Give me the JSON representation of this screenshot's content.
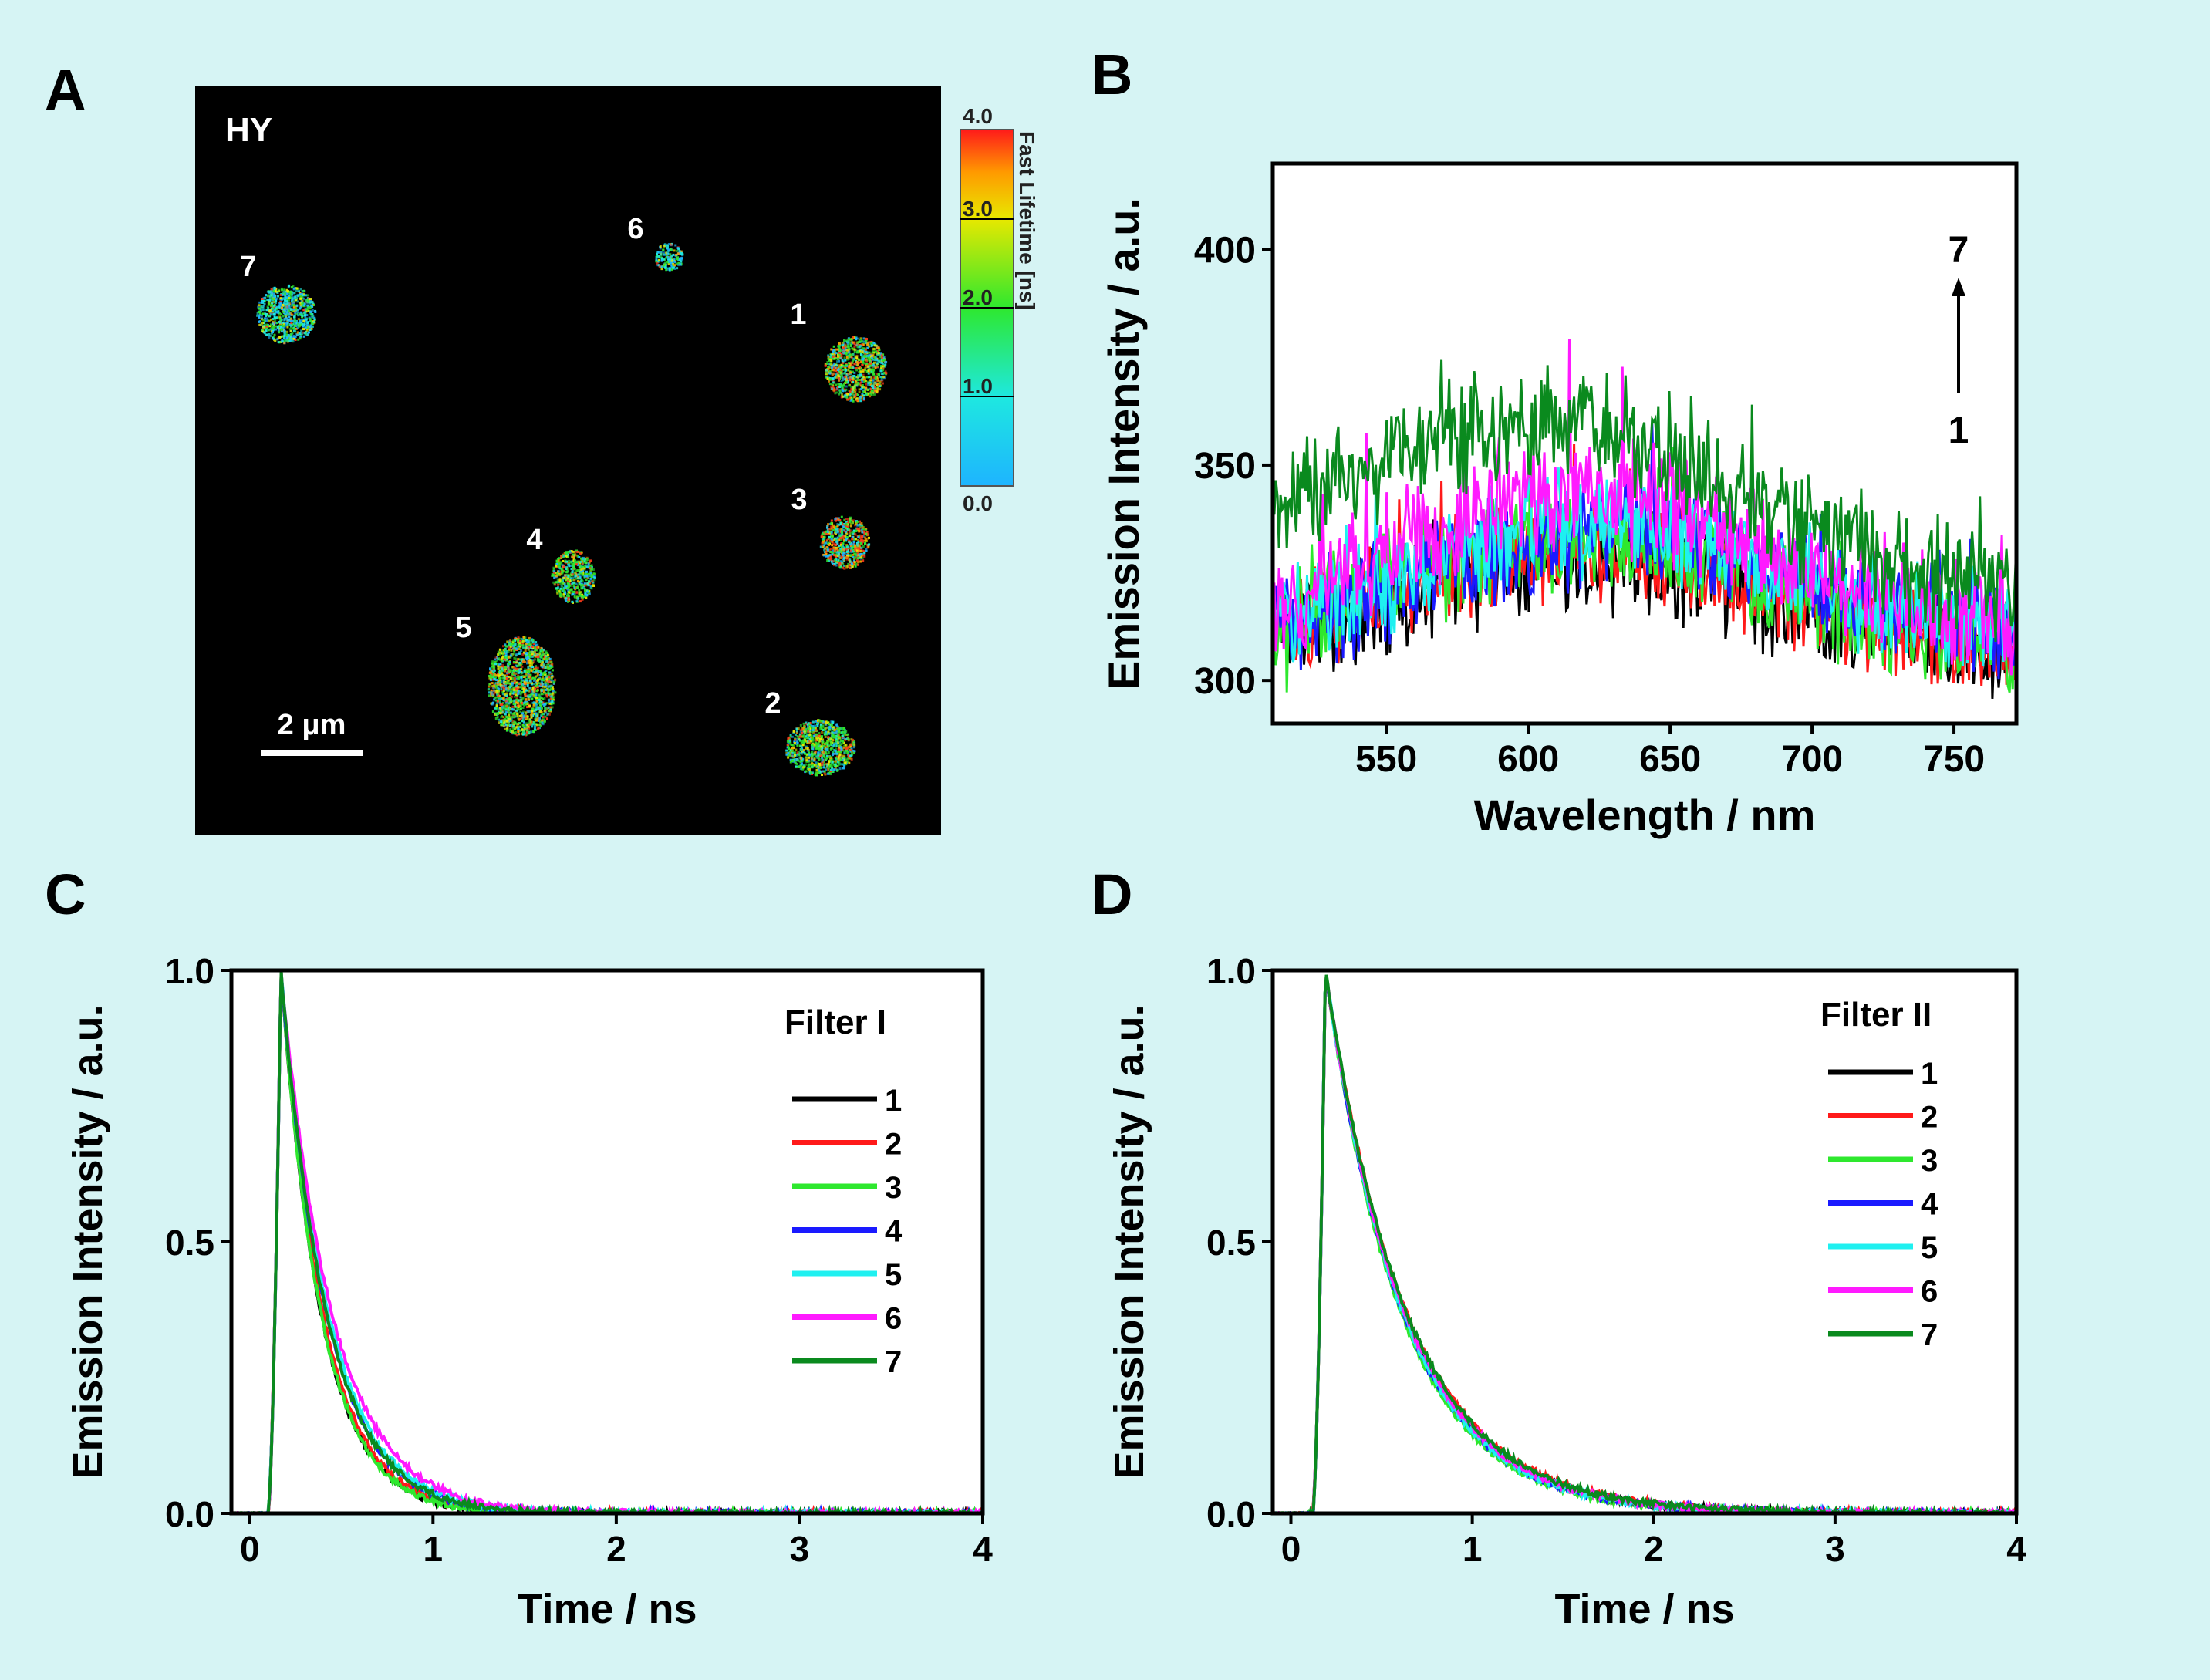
{
  "figure": {
    "background": "#d6f4f4",
    "panel_labels": [
      "A",
      "B",
      "C",
      "D"
    ]
  },
  "palette": {
    "1": "#000000",
    "2": "#ff1a1a",
    "3": "#2ee82e",
    "4": "#1a1aff",
    "5": "#1ff0f0",
    "6": "#ff1aff",
    "7": "#0a8a1e"
  },
  "image_panel": {
    "title": "HY",
    "scalebar_label": "2 μm",
    "particles": [
      {
        "label": "1"
      },
      {
        "label": "2"
      },
      {
        "label": "3"
      },
      {
        "label": "4"
      },
      {
        "label": "5"
      },
      {
        "label": "6"
      },
      {
        "label": "7"
      }
    ],
    "colorbar": {
      "title": "Fast Lifetime [ns]",
      "ticks": [
        "0.0",
        "1.0",
        "2.0",
        "3.0",
        "4.0"
      ],
      "range": [
        0,
        4
      ]
    }
  },
  "chart_data": [
    {
      "id": "B",
      "type": "line",
      "xlabel": "Wavelength / nm",
      "ylabel": "Emission Intensity / a.u.",
      "xlim": [
        510,
        772
      ],
      "ylim": [
        290,
        420
      ],
      "xticks": [
        550,
        600,
        650,
        700,
        750
      ],
      "yticks": [
        300,
        350,
        400
      ],
      "annotation": {
        "top": "7",
        "bottom": "1"
      },
      "series": [
        {
          "name": "1",
          "color": "#000000",
          "peak_x": 620,
          "peak_y": 328,
          "width": 110,
          "base": 305,
          "noise": 8
        },
        {
          "name": "2",
          "color": "#ff1a1a",
          "peak_x": 620,
          "peak_y": 330,
          "width": 110,
          "base": 306,
          "noise": 8
        },
        {
          "name": "3",
          "color": "#2ee82e",
          "peak_x": 620,
          "peak_y": 333,
          "width": 110,
          "base": 307,
          "noise": 8
        },
        {
          "name": "4",
          "color": "#1a1aff",
          "peak_x": 630,
          "peak_y": 335,
          "width": 110,
          "base": 308,
          "noise": 8
        },
        {
          "name": "5",
          "color": "#1ff0f0",
          "peak_x": 625,
          "peak_y": 337,
          "width": 110,
          "base": 309,
          "noise": 8
        },
        {
          "name": "6",
          "color": "#ff1aff",
          "peak_x": 620,
          "peak_y": 343,
          "width": 110,
          "base": 312,
          "noise": 9
        },
        {
          "name": "7",
          "color": "#0a8a1e",
          "peak_x": 600,
          "peak_y": 360,
          "width": 120,
          "base": 320,
          "noise": 9
        }
      ]
    },
    {
      "id": "C",
      "type": "line",
      "legend_title": "Filter I",
      "xlabel": "Time / ns",
      "ylabel": "Emission Intensity / a.u.",
      "xlim": [
        -0.1,
        4
      ],
      "ylim": [
        0,
        1.0
      ],
      "xticks": [
        0,
        1,
        2,
        3,
        4
      ],
      "yticks": [
        "0.0",
        "0.5",
        "1.0"
      ],
      "peak_t": 0.17,
      "series": [
        {
          "name": "1",
          "color": "#000000",
          "tau": 0.22
        },
        {
          "name": "2",
          "color": "#ff1a1a",
          "tau": 0.23
        },
        {
          "name": "3",
          "color": "#2ee82e",
          "tau": 0.22
        },
        {
          "name": "4",
          "color": "#1a1aff",
          "tau": 0.25
        },
        {
          "name": "5",
          "color": "#1ff0f0",
          "tau": 0.26
        },
        {
          "name": "6",
          "color": "#ff1aff",
          "tau": 0.28
        },
        {
          "name": "7",
          "color": "#0a8a1e",
          "tau": 0.25
        }
      ]
    },
    {
      "id": "D",
      "type": "line",
      "legend_title": "Filter II",
      "xlabel": "Time / ns",
      "ylabel": "Emission Intensity / a.u.",
      "xlim": [
        -0.1,
        4
      ],
      "ylim": [
        0,
        1.0
      ],
      "xticks": [
        0,
        1,
        2,
        3,
        4
      ],
      "yticks": [
        "0.0",
        "0.5",
        "1.0"
      ],
      "peak_t": 0.19,
      "series": [
        {
          "name": "1",
          "color": "#000000",
          "tau": 0.44
        },
        {
          "name": "2",
          "color": "#ff1a1a",
          "tau": 0.45
        },
        {
          "name": "3",
          "color": "#2ee82e",
          "tau": 0.42
        },
        {
          "name": "4",
          "color": "#1a1aff",
          "tau": 0.43
        },
        {
          "name": "5",
          "color": "#1ff0f0",
          "tau": 0.43
        },
        {
          "name": "6",
          "color": "#ff1aff",
          "tau": 0.44
        },
        {
          "name": "7",
          "color": "#0a8a1e",
          "tau": 0.45
        }
      ]
    }
  ]
}
